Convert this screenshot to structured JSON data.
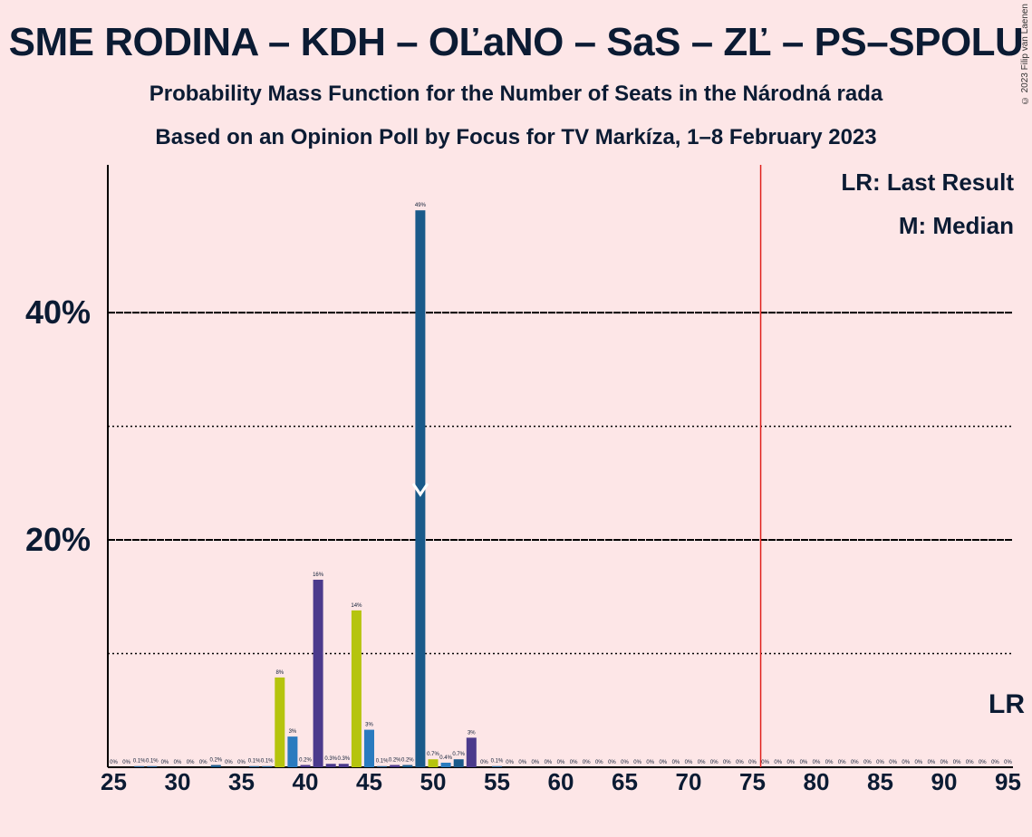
{
  "title": "SME RODINA – KDH – OĽaNO – SaS – ZĽ – PS–SPOLU",
  "subtitle1": "Probability Mass Function for the Number of Seats in the Národná rada",
  "subtitle2": "Based on an Opinion Poll by Focus for TV Markíza, 1–8 February 2023",
  "copyright": "© 2023 Filip van Laenen",
  "legend": {
    "lr": "LR: Last Result",
    "m": "M: Median"
  },
  "colors": {
    "background": "#fde6e7",
    "dark_blue": "#1a5a8a",
    "mid_blue": "#2a7bbf",
    "purple": "#4b3a8c",
    "lime": "#b5c40e",
    "last_result_line": "#e0201c",
    "text": "#0b1b33"
  },
  "chart_data": {
    "type": "bar",
    "x_axis": {
      "min": 25,
      "max": 95,
      "tick_labels": [
        "25",
        "30",
        "35",
        "40",
        "45",
        "50",
        "55",
        "60",
        "65",
        "70",
        "75",
        "80",
        "85",
        "90",
        "95"
      ]
    },
    "y_axis": {
      "ylim": [
        0,
        53
      ],
      "labeled_gridlines": [
        "20%",
        "40%"
      ],
      "dotted_gridlines": [
        10,
        30
      ]
    },
    "median_seat": 49,
    "median_marker": "M",
    "last_result_seat": 76,
    "last_result_label": "LR",
    "bars": [
      {
        "seat": 25,
        "value": 0,
        "label": "0%",
        "color": "dark_blue"
      },
      {
        "seat": 26,
        "value": 0,
        "label": "0%",
        "color": "dark_blue"
      },
      {
        "seat": 27,
        "value": 0.1,
        "label": "0.1%",
        "color": "dark_blue"
      },
      {
        "seat": 28,
        "value": 0.1,
        "label": "0.1%",
        "color": "dark_blue"
      },
      {
        "seat": 29,
        "value": 0,
        "label": "0%",
        "color": "dark_blue"
      },
      {
        "seat": 30,
        "value": 0,
        "label": "0%",
        "color": "dark_blue"
      },
      {
        "seat": 31,
        "value": 0,
        "label": "0%",
        "color": "dark_blue"
      },
      {
        "seat": 32,
        "value": 0,
        "label": "0%",
        "color": "dark_blue"
      },
      {
        "seat": 33,
        "value": 0.2,
        "label": "0.2%",
        "color": "dark_blue"
      },
      {
        "seat": 34,
        "value": 0,
        "label": "0%",
        "color": "dark_blue"
      },
      {
        "seat": 35,
        "value": 0,
        "label": "0%",
        "color": "dark_blue"
      },
      {
        "seat": 36,
        "value": 0.1,
        "label": "0.1%",
        "color": "dark_blue"
      },
      {
        "seat": 37,
        "value": 0.1,
        "label": "0.1%",
        "color": "dark_blue"
      },
      {
        "seat": 38,
        "value": 7.9,
        "label": "8%",
        "color": "lime"
      },
      {
        "seat": 39,
        "value": 2.7,
        "label": "3%",
        "color": "mid_blue"
      },
      {
        "seat": 40,
        "value": 0.2,
        "label": "0.2%",
        "color": "purple"
      },
      {
        "seat": 41,
        "value": 16.5,
        "label": "16%",
        "color": "purple"
      },
      {
        "seat": 42,
        "value": 0.3,
        "label": "0.3%",
        "color": "purple"
      },
      {
        "seat": 43,
        "value": 0.3,
        "label": "0.3%",
        "color": "purple"
      },
      {
        "seat": 44,
        "value": 13.8,
        "label": "14%",
        "color": "lime"
      },
      {
        "seat": 45,
        "value": 3.3,
        "label": "3%",
        "color": "mid_blue"
      },
      {
        "seat": 46,
        "value": 0.1,
        "label": "0.1%",
        "color": "dark_blue"
      },
      {
        "seat": 47,
        "value": 0.2,
        "label": "0.2%",
        "color": "purple"
      },
      {
        "seat": 48,
        "value": 0.2,
        "label": "0.2%",
        "color": "dark_blue"
      },
      {
        "seat": 49,
        "value": 49,
        "label": "49%",
        "color": "dark_blue"
      },
      {
        "seat": 50,
        "value": 0.7,
        "label": "0.7%",
        "color": "lime"
      },
      {
        "seat": 51,
        "value": 0.4,
        "label": "0.4%",
        "color": "mid_blue"
      },
      {
        "seat": 52,
        "value": 0.7,
        "label": "0.7%",
        "color": "dark_blue"
      },
      {
        "seat": 53,
        "value": 2.6,
        "label": "3%",
        "color": "purple"
      },
      {
        "seat": 54,
        "value": 0,
        "label": "0%",
        "color": "dark_blue"
      },
      {
        "seat": 55,
        "value": 0.1,
        "label": "0.1%",
        "color": "dark_blue"
      },
      {
        "seat": 56,
        "value": 0,
        "label": "0%",
        "color": "dark_blue"
      },
      {
        "seat": 57,
        "value": 0,
        "label": "0%",
        "color": "dark_blue"
      },
      {
        "seat": 58,
        "value": 0,
        "label": "0%",
        "color": "dark_blue"
      },
      {
        "seat": 59,
        "value": 0,
        "label": "0%",
        "color": "dark_blue"
      },
      {
        "seat": 60,
        "value": 0,
        "label": "0%",
        "color": "dark_blue"
      },
      {
        "seat": 61,
        "value": 0,
        "label": "0%",
        "color": "dark_blue"
      },
      {
        "seat": 62,
        "value": 0,
        "label": "0%",
        "color": "dark_blue"
      },
      {
        "seat": 63,
        "value": 0,
        "label": "0%",
        "color": "dark_blue"
      },
      {
        "seat": 64,
        "value": 0,
        "label": "0%",
        "color": "dark_blue"
      },
      {
        "seat": 65,
        "value": 0,
        "label": "0%",
        "color": "dark_blue"
      },
      {
        "seat": 66,
        "value": 0,
        "label": "0%",
        "color": "dark_blue"
      },
      {
        "seat": 67,
        "value": 0,
        "label": "0%",
        "color": "dark_blue"
      },
      {
        "seat": 68,
        "value": 0,
        "label": "0%",
        "color": "dark_blue"
      },
      {
        "seat": 69,
        "value": 0,
        "label": "0%",
        "color": "dark_blue"
      },
      {
        "seat": 70,
        "value": 0,
        "label": "0%",
        "color": "dark_blue"
      },
      {
        "seat": 71,
        "value": 0,
        "label": "0%",
        "color": "dark_blue"
      },
      {
        "seat": 72,
        "value": 0,
        "label": "0%",
        "color": "dark_blue"
      },
      {
        "seat": 73,
        "value": 0,
        "label": "0%",
        "color": "dark_blue"
      },
      {
        "seat": 74,
        "value": 0,
        "label": "0%",
        "color": "dark_blue"
      },
      {
        "seat": 75,
        "value": 0,
        "label": "0%",
        "color": "dark_blue"
      },
      {
        "seat": 76,
        "value": 0,
        "label": "0%",
        "color": "dark_blue"
      },
      {
        "seat": 77,
        "value": 0,
        "label": "0%",
        "color": "dark_blue"
      },
      {
        "seat": 78,
        "value": 0,
        "label": "0%",
        "color": "dark_blue"
      },
      {
        "seat": 79,
        "value": 0,
        "label": "0%",
        "color": "dark_blue"
      },
      {
        "seat": 80,
        "value": 0,
        "label": "0%",
        "color": "dark_blue"
      },
      {
        "seat": 81,
        "value": 0,
        "label": "0%",
        "color": "dark_blue"
      },
      {
        "seat": 82,
        "value": 0,
        "label": "0%",
        "color": "dark_blue"
      },
      {
        "seat": 83,
        "value": 0,
        "label": "0%",
        "color": "dark_blue"
      },
      {
        "seat": 84,
        "value": 0,
        "label": "0%",
        "color": "dark_blue"
      },
      {
        "seat": 85,
        "value": 0,
        "label": "0%",
        "color": "dark_blue"
      },
      {
        "seat": 86,
        "value": 0,
        "label": "0%",
        "color": "dark_blue"
      },
      {
        "seat": 87,
        "value": 0,
        "label": "0%",
        "color": "dark_blue"
      },
      {
        "seat": 88,
        "value": 0,
        "label": "0%",
        "color": "dark_blue"
      },
      {
        "seat": 89,
        "value": 0,
        "label": "0%",
        "color": "dark_blue"
      },
      {
        "seat": 90,
        "value": 0,
        "label": "0%",
        "color": "dark_blue"
      },
      {
        "seat": 91,
        "value": 0,
        "label": "0%",
        "color": "dark_blue"
      },
      {
        "seat": 92,
        "value": 0,
        "label": "0%",
        "color": "dark_blue"
      },
      {
        "seat": 93,
        "value": 0,
        "label": "0%",
        "color": "dark_blue"
      },
      {
        "seat": 94,
        "value": 0,
        "label": "0%",
        "color": "dark_blue"
      },
      {
        "seat": 95,
        "value": 0,
        "label": "0%",
        "color": "dark_blue"
      }
    ]
  }
}
